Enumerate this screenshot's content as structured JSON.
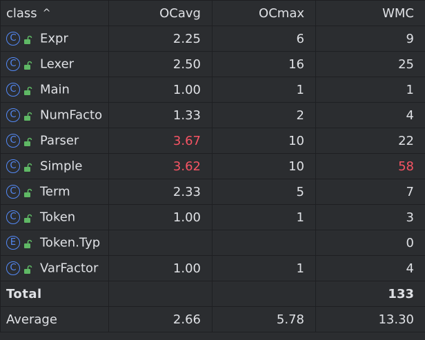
{
  "header": {
    "class_label": "class",
    "sort_indicator": "^",
    "ocavg_label": "OCavg",
    "ocmax_label": "OCmax",
    "wmc_label": "WMC"
  },
  "rows": [
    {
      "icon": "C",
      "name": "Expr",
      "ocavg": "2.25",
      "ocmax": "6",
      "wmc": "9"
    },
    {
      "icon": "C",
      "name": "Lexer",
      "ocavg": "2.50",
      "ocmax": "16",
      "wmc": "25"
    },
    {
      "icon": "C",
      "name": "Main",
      "ocavg": "1.00",
      "ocmax": "1",
      "wmc": "1"
    },
    {
      "icon": "C",
      "name": "NumFacto",
      "ocavg": "1.33",
      "ocmax": "2",
      "wmc": "4"
    },
    {
      "icon": "C",
      "name": "Parser",
      "ocavg": "3.67",
      "ocmax": "10",
      "wmc": "22"
    },
    {
      "icon": "C",
      "name": "Simple",
      "ocavg": "3.62",
      "ocmax": "10",
      "wmc": "58"
    },
    {
      "icon": "C",
      "name": "Term",
      "ocavg": "2.33",
      "ocmax": "5",
      "wmc": "7"
    },
    {
      "icon": "C",
      "name": "Token",
      "ocavg": "1.00",
      "ocmax": "1",
      "wmc": "3"
    },
    {
      "icon": "E",
      "name": "Token.Typ",
      "ocavg": "",
      "ocmax": "",
      "wmc": "0"
    },
    {
      "icon": "C",
      "name": "VarFactor",
      "ocavg": "1.00",
      "ocmax": "1",
      "wmc": "4"
    }
  ],
  "total": {
    "label": "Total",
    "ocavg": "",
    "ocmax": "",
    "wmc": "133"
  },
  "average": {
    "label": "Average",
    "ocavg": "2.66",
    "ocmax": "5.78",
    "wmc": "13.30"
  },
  "colors": {
    "warning": "#f75464",
    "class_icon": "#548af7",
    "lock_icon": "#5fb865"
  }
}
